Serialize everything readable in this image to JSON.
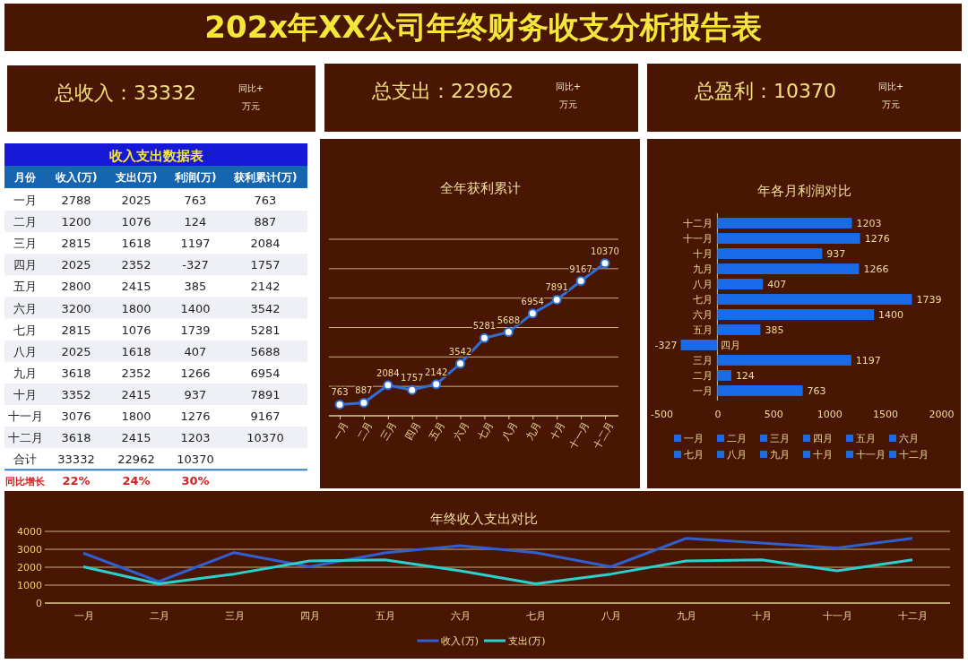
{
  "chart_data": [
    {
      "type": "other",
      "title": "202x年XX公司年终财务收支分析报告表",
      "annotations": [
        "总收入：33332",
        "同比+",
        "万元",
        "总支出：22962",
        "同比+",
        "万元",
        "总盈利：10370",
        "同比+",
        "万元"
      ]
    },
    {
      "type": "other",
      "title": "收入支出数据表",
      "xlabel": "月份",
      "categories": [
        "一月",
        "二月",
        "三月",
        "四月",
        "五月",
        "六月",
        "七月",
        "八月",
        "九月",
        "十月",
        "十一月",
        "十二月",
        "合计",
        "同比增长"
      ],
      "series": [
        {
          "name": "收入(万)",
          "values": [
            2788,
            1200,
            2815,
            2025,
            2800,
            3200,
            2815,
            2025,
            3618,
            3352,
            3076,
            3618,
            33332,
            22
          ],
          "value_labels": [
            "2788",
            "1200",
            "2815",
            "2025",
            "2800",
            "3200",
            "2815",
            "2025",
            "3618",
            "3352",
            "3076",
            "3618",
            "33332",
            "22%"
          ]
        },
        {
          "name": "支出(万)",
          "values": [
            2025,
            1076,
            1618,
            2352,
            2415,
            1800,
            1076,
            1618,
            2352,
            2415,
            1800,
            2415,
            22962,
            24
          ],
          "value_labels": [
            "2025",
            "1076",
            "1618",
            "2352",
            "2415",
            "1800",
            "1076",
            "1618",
            "2352",
            "2415",
            "1800",
            "2415",
            "22962",
            "24%"
          ]
        },
        {
          "name": "利润(万)",
          "values": [
            763,
            124,
            1197,
            -327,
            385,
            1400,
            1739,
            407,
            1266,
            937,
            1276,
            1203,
            10370,
            30
          ],
          "value_labels": [
            "763",
            "124",
            "1197",
            "-327",
            "385",
            "1400",
            "1739",
            "407",
            "1266",
            "937",
            "1276",
            "1203",
            "10370",
            "30%"
          ]
        },
        {
          "name": "获利累计(万)",
          "values": [
            763,
            887,
            2084,
            1757,
            2142,
            3542,
            5281,
            5688,
            6954,
            7891,
            9167,
            10370,
            null,
            null
          ],
          "value_labels": [
            "763",
            "887",
            "2084",
            "1757",
            "2142",
            "3542",
            "5281",
            "5688",
            "6954",
            "7891",
            "9167",
            "10370",
            null,
            null
          ]
        }
      ]
    },
    {
      "type": "line",
      "title": "全年获利累计",
      "categories": [
        "一月",
        "二月",
        "三月",
        "四月",
        "五月",
        "六月",
        "七月",
        "八月",
        "九月",
        "十月",
        "十一月",
        "十二月"
      ],
      "series": [
        {
          "color": "#2f6fd6",
          "values": [
            763,
            887,
            2084,
            1757,
            2142,
            3542,
            5281,
            5688,
            6954,
            7891,
            9167,
            10370
          ]
        }
      ],
      "ylim": [
        0,
        12000
      ],
      "yticks": [
        {
          "value": 0,
          "label": null
        },
        {
          "value": 2000,
          "label": null
        },
        {
          "value": 4000,
          "label": null
        },
        {
          "value": 6000,
          "label": null
        },
        {
          "value": 8000,
          "label": null
        },
        {
          "value": 10000,
          "label": null
        },
        {
          "value": 12000,
          "label": null
        }
      ],
      "tick_labels": "x",
      "grid": "y",
      "marker": "circle",
      "data_labels": true
    },
    {
      "type": "bar",
      "orientation": "horizontal",
      "title": "年各月利润对比",
      "categories": [
        "十二月",
        "十一月",
        "十月",
        "九月",
        "八月",
        "七月",
        "六月",
        "五月",
        "四月",
        "三月",
        "二月",
        "一月"
      ],
      "values": [
        1203,
        1276,
        937,
        1266,
        407,
        1739,
        1400,
        385,
        -327,
        1197,
        124,
        763
      ],
      "color": "#1a6be8",
      "xlim": [
        -500,
        2000
      ],
      "xticks": [
        -500,
        0,
        500,
        1000,
        1500,
        2000
      ],
      "data_labels": true
    },
    {
      "type": "line",
      "title": "年终收入支出对比",
      "categories": [
        "一月",
        "二月",
        "三月",
        "四月",
        "五月",
        "六月",
        "七月",
        "八月",
        "九月",
        "十月",
        "十一月",
        "十二月"
      ],
      "series": [
        {
          "name": "收入(万)",
          "color": "#2f5fd0",
          "values": [
            2788,
            1200,
            2815,
            2025,
            2800,
            3200,
            2815,
            2025,
            3618,
            3352,
            3076,
            3618
          ]
        },
        {
          "name": "支出(万)",
          "color": "#2ad2cf",
          "values": [
            2025,
            1076,
            1618,
            2352,
            2415,
            1800,
            1076,
            1618,
            2352,
            2415,
            1800,
            2415
          ]
        }
      ],
      "ylim": [
        0,
        4000
      ],
      "yticks": [
        0,
        1000,
        2000,
        3000,
        4000
      ],
      "grid": "y",
      "legend": "bottom"
    }
  ]
}
